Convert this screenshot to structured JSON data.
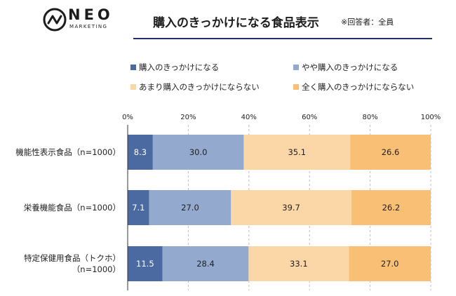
{
  "logo": {
    "name": "NEO",
    "sub": "MARKETING",
    "icon": "neo-marketing-logo-icon"
  },
  "chart_data": {
    "type": "bar",
    "orientation": "horizontal",
    "stacked": true,
    "title": "購入のきっかけになる食品表示",
    "subtitle": "※回答者：全員",
    "categories": [
      [
        "機能性表示食品（n=1000）"
      ],
      [
        "栄養機能食品（n=1000）"
      ],
      [
        "特定保健用食品（トクホ）",
        "（n=1000）"
      ]
    ],
    "series": [
      {
        "name": "購入のきっかけになる",
        "values": [
          8.3,
          7.1,
          11.5
        ],
        "value_labels": [
          "8.3",
          "7.1",
          "11.5"
        ],
        "color": "#4a6aa1",
        "label_color": "#ffffff"
      },
      {
        "name": "やや購入のきっかけになる",
        "values": [
          30.0,
          27.0,
          28.4
        ],
        "value_labels": [
          "30.0",
          "27.0",
          "28.4"
        ],
        "color": "#93a9cd",
        "label_color": "#222222"
      },
      {
        "name": "あまり購入のきっかけにならない",
        "values": [
          35.1,
          39.7,
          33.1
        ],
        "value_labels": [
          "35.1",
          "39.7",
          "33.1"
        ],
        "color": "#fbd7a8",
        "label_color": "#222222"
      },
      {
        "name": "全く購入のきっかけにならない",
        "values": [
          26.6,
          26.2,
          27.0
        ],
        "value_labels": [
          "26.6",
          "26.2",
          "27.0"
        ],
        "color": "#f9bf75",
        "label_color": "#222222"
      }
    ],
    "x_ticks": [
      "0%",
      "20%",
      "40%",
      "60%",
      "80%",
      "100%"
    ],
    "xlim": [
      0,
      100
    ],
    "legend_position": "top",
    "grid": "vertical"
  }
}
